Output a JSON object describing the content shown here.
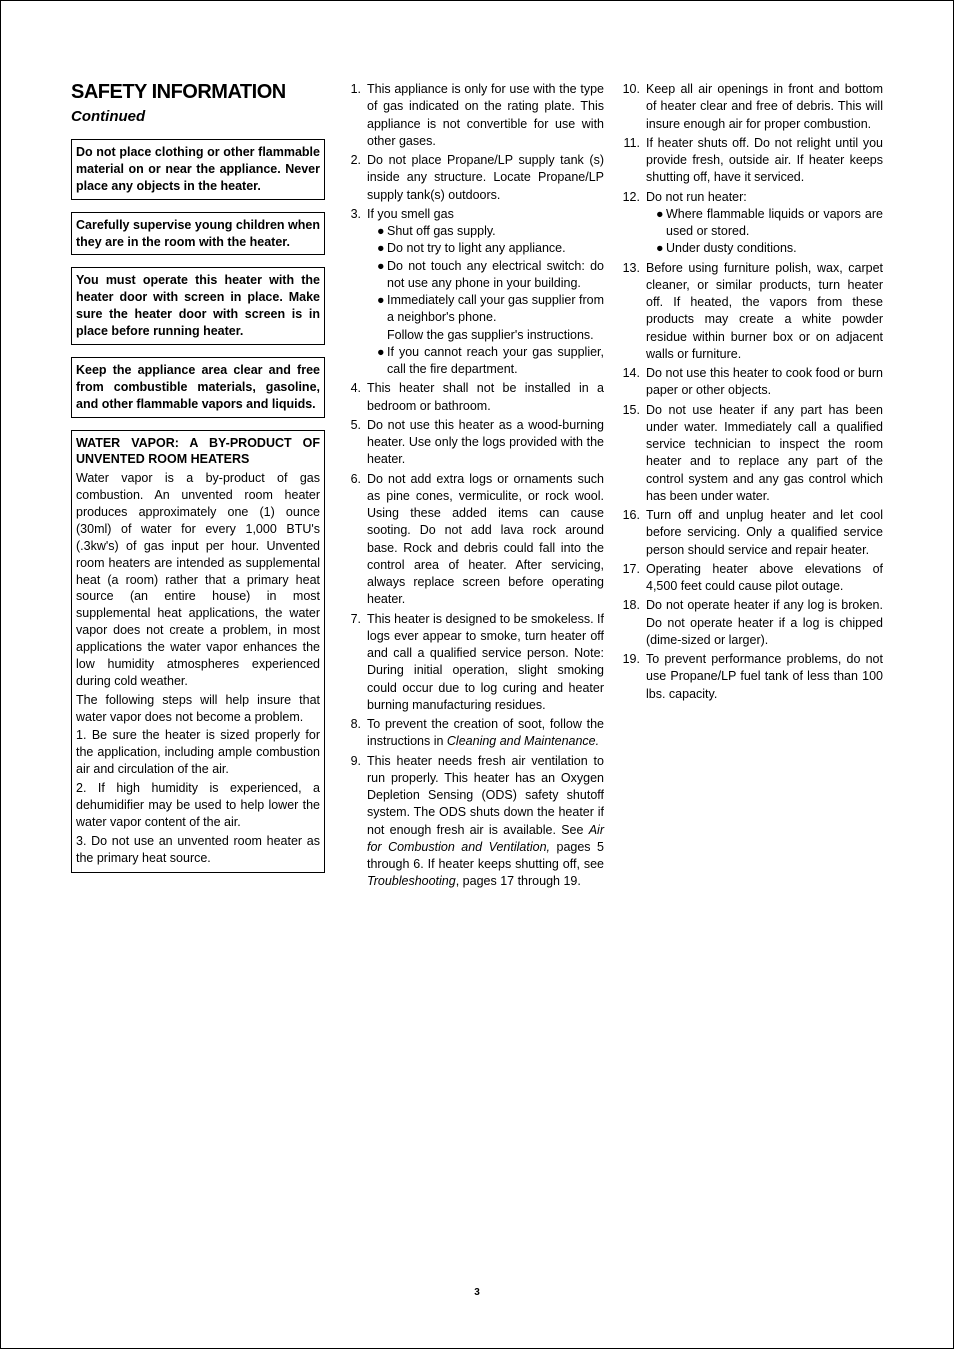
{
  "heading": "SAFETY INFORMATION",
  "subheading": "Continued",
  "box1": "Do not place clothing or other flammable material on or near the appliance. Never place any objects in the heater.",
  "box2": "Carefully supervise young children when they are in the room with the heater.",
  "box3": "You must operate this heater with the heater door with screen in place. Make sure the heater door with screen is in place before running heater.",
  "box4": "Keep the appliance area clear and free from combustible materials, gasoline, and other flammable vapors and liquids.",
  "box5": {
    "title": "WATER VAPOR: A BY-PRODUCT OF UNVENTED ROOM HEATERS",
    "p1": "Water vapor is a by-product of gas combustion. An unvented room heater produces approximately one (1) ounce (30ml) of water for every 1,000 BTU's (.3kw's) of gas input per hour. Unvented room heaters are intended as supplemental heat (a room) rather that a primary heat source (an entire house) in most supplemental heat applications, the water vapor does not create a problem, in most applications the water vapor enhances the low humidity atmospheres experienced during cold weather.",
    "p2": "The following steps will help insure that water vapor does not become a problem.",
    "p3": "1. Be sure the heater is sized properly for the application, including ample combustion air and circulation of the air.",
    "p4": "2. If high humidity is experienced, a dehumidifier may be used to help lower the water vapor content of the air.",
    "p5": "3. Do not use an unvented room heater as the primary heat source."
  },
  "mid": {
    "n1": "1.",
    "t1": "This appliance is only for use with the type of gas indicated on the rating plate. This appliance is not convertible for use with other gases.",
    "n2": "2.",
    "t2": "Do not place Propane/LP supply tank (s) inside any structure. Locate Propane/LP supply tank(s) outdoors.",
    "n3": "3.",
    "t3": "If you smell gas",
    "b3a": "Shut off gas supply.",
    "b3b": "Do not try to light any appliance.",
    "b3c": "Do not touch any electrical switch: do not use any phone in your building.",
    "b3d": "Immediately call your gas supplier from a neighbor's phone.",
    "b3d2": "Follow the gas supplier's instructions.",
    "b3e": "If you cannot reach your gas supplier, call the fire department.",
    "n4": "4.",
    "t4": "This heater shall not be installed in a bedroom or bathroom.",
    "n5": "5.",
    "t5": "Do not use this heater as a wood-burning heater. Use only the logs provided with the heater.",
    "n6": "6.",
    "t6": "Do not add extra logs or ornaments such as pine cones, vermiculite, or rock wool. Using these added items can cause sooting. Do not add lava rock around base. Rock and debris could fall into the control area of heater. After servicing, always replace screen before operating heater.",
    "n7": "7.",
    "t7": "This heater is designed to be smokeless. If logs ever appear to smoke, turn heater off and call a qualified service person. Note:  During initial operation, slight smoking could occur due to log curing and heater burning manufacturing residues.",
    "n8": "8.",
    "t8a": "To prevent the creation of soot, follow the instructions in ",
    "t8b": "Cleaning and Maintenance.",
    "n9": "9.",
    "t9a": "This heater needs fresh air ventilation to run properly. This heater has an Oxygen Depletion Sensing (ODS) safety shutoff system. The ODS shuts down the heater if not enough fresh air is available. See ",
    "t9b": "Air for Combustion and Ventilation,",
    "t9c": " pages 5 through 6. If heater keeps shutting off, see ",
    "t9d": "Troubleshooting",
    "t9e": ", pages 17 through 19."
  },
  "right": {
    "n10": "10.",
    "t10": "Keep all air openings in front and bottom of heater clear and free of debris. This will insure enough air for proper combustion.",
    "n11": "11.",
    "t11": "If heater shuts off. Do not relight until you provide fresh, outside air. If heater keeps shutting off, have it serviced.",
    "n12": "12.",
    "t12": "Do not run heater:",
    "b12a": "Where flammable liquids or vapors are used or stored.",
    "b12b": "Under dusty conditions.",
    "n13": "13.",
    "t13": "Before using furniture polish, wax, carpet cleaner, or similar products, turn heater off. If heated, the vapors from these products may create a white powder residue within burner box or on adjacent walls or furniture.",
    "n14": "14.",
    "t14": "Do not use this heater to cook food or burn paper or other objects.",
    "n15": "15.",
    "t15": "Do not use heater if any part has been under water. Immediately call a qualified service technician to inspect the room heater and to replace any part of the control system and any gas control which has been under water.",
    "n16": "16.",
    "t16": "Turn off and unplug heater and let cool before servicing. Only a qualified service person should service and repair heater.",
    "n17": "17.",
    "t17": "Operating heater above elevations of 4,500 feet could cause pilot outage.",
    "n18": "18.",
    "t18": "Do not operate heater if any log is broken. Do not operate heater if a log is chipped (dime-sized or larger).",
    "n19": "19.",
    "t19": "To prevent performance problems, do not use Propane/LP fuel tank of less than 100 lbs. capacity."
  },
  "pagenum": "3"
}
